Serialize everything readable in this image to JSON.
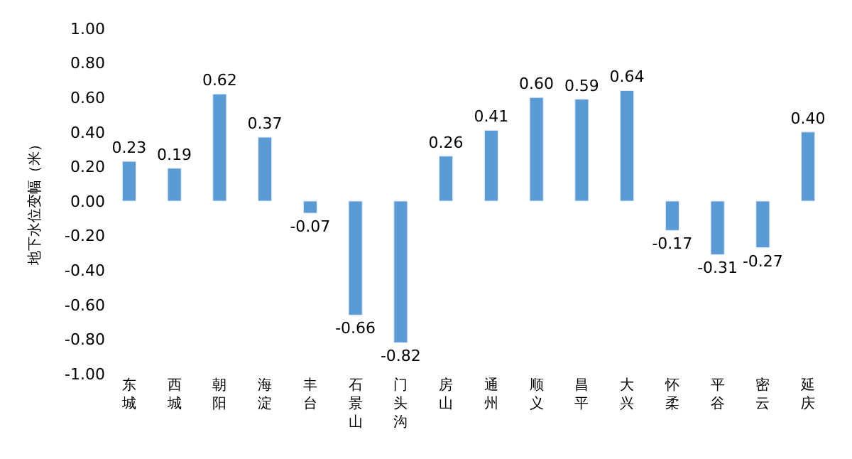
{
  "chart_data": {
    "type": "bar",
    "ylabel": "地下水位变幅（米）",
    "categories": [
      "东城",
      "西城",
      "朝阳",
      "海淀",
      "丰台",
      "石景山",
      "门头沟",
      "房山",
      "通州",
      "顺义",
      "昌平",
      "大兴",
      "怀柔",
      "平谷",
      "密云",
      "延庆"
    ],
    "values": [
      0.23,
      0.19,
      0.62,
      0.37,
      -0.07,
      -0.66,
      -0.82,
      0.26,
      0.41,
      0.6,
      0.59,
      0.64,
      -0.17,
      -0.31,
      -0.27,
      0.4
    ],
    "color": "#5b9bd5",
    "ylim": [
      -1.0,
      1.0
    ],
    "yticks": [
      {
        "value": -1.0,
        "label": "-1.00"
      },
      {
        "value": -0.8,
        "label": "-0.80"
      },
      {
        "value": -0.6,
        "label": "-0.60"
      },
      {
        "value": -0.4,
        "label": "-0.40"
      },
      {
        "value": -0.2,
        "label": "-0.20"
      },
      {
        "value": 0,
        "label": "0.00"
      },
      {
        "value": 0.2,
        "label": "0.20"
      },
      {
        "value": 0.4,
        "label": "0.40"
      },
      {
        "value": 0.6,
        "label": "0.60"
      },
      {
        "value": 0.8,
        "label": "0.80"
      },
      {
        "value": 1.0,
        "label": "1.00"
      }
    ],
    "value_labels": [
      "0.23",
      "0.19",
      "0.62",
      "0.37",
      "-0.07",
      "-0.66",
      "-0.82",
      "0.26",
      "0.41",
      "0.60",
      "0.59",
      "0.64",
      "-0.17",
      "-0.31",
      "-0.27",
      "0.40"
    ],
    "legend": false
  }
}
